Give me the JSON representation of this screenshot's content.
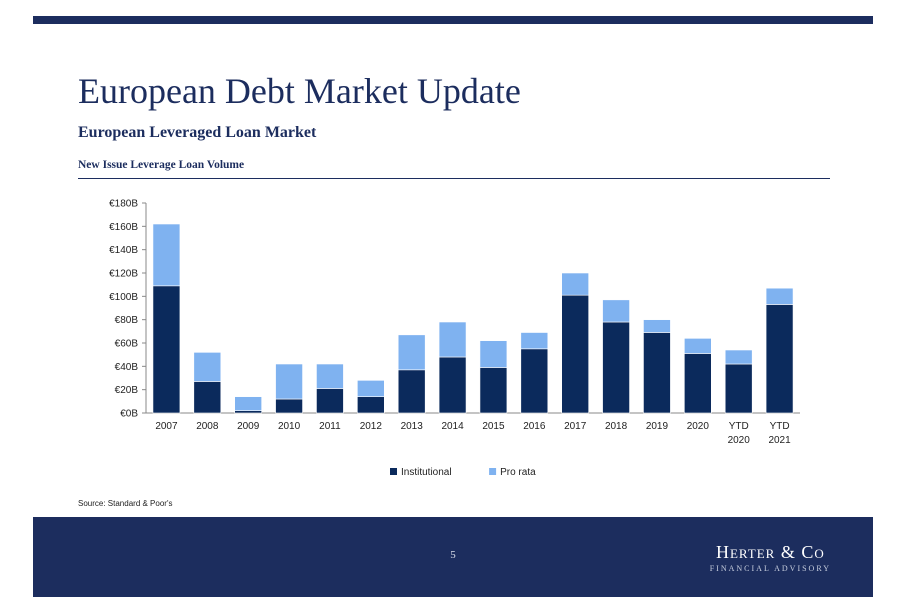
{
  "page": {
    "title": "European Debt Market Update",
    "subtitle": "European Leveraged Loan Market",
    "section_title": "New Issue Leverage Loan Volume",
    "source": "Source: Standard & Poor's",
    "page_number": "5",
    "brand": {
      "name": "Herter & Co",
      "tagline": "FINANCIAL ADVISORY"
    },
    "colors": {
      "navy": "#1c2d5e",
      "institutional": "#0b2a5c",
      "pro_rata": "#7fb2f0"
    }
  },
  "chart_data": {
    "type": "bar",
    "stacked": true,
    "categories": [
      "2007",
      "2008",
      "2009",
      "2010",
      "2011",
      "2012",
      "2013",
      "2014",
      "2015",
      "2016",
      "2017",
      "2018",
      "2019",
      "2020",
      "YTD 2020",
      "YTD 2021"
    ],
    "series": [
      {
        "name": "Institutional",
        "color": "#0b2a5c",
        "values": [
          109,
          27,
          2,
          12,
          21,
          14,
          37,
          48,
          39,
          55,
          101,
          78,
          69,
          51,
          42,
          93
        ]
      },
      {
        "name": "Pro rata",
        "color": "#7fb2f0",
        "values": [
          53,
          25,
          12,
          30,
          21,
          14,
          30,
          30,
          23,
          14,
          19,
          19,
          11,
          13,
          12,
          14
        ]
      }
    ],
    "ylim": [
      0,
      180
    ],
    "yticks": [
      0,
      20,
      40,
      60,
      80,
      100,
      120,
      140,
      160,
      180
    ],
    "ytick_labels": [
      "€0B",
      "€20B",
      "€40B",
      "€60B",
      "€80B",
      "€100B",
      "€120B",
      "€140B",
      "€160B",
      "€180B"
    ],
    "legend_position": "bottom-center",
    "grid": false
  }
}
